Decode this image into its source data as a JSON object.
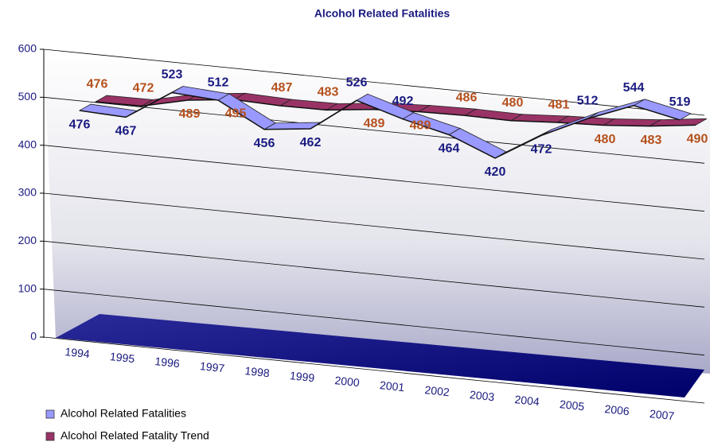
{
  "chart_data": {
    "type": "line3d",
    "title": "Alcohol Related Fatalities",
    "categories": [
      "1994",
      "1995",
      "1996",
      "1997",
      "1998",
      "1999",
      "2000",
      "2001",
      "2002",
      "2003",
      "2004",
      "2005",
      "2006",
      "2007"
    ],
    "series": [
      {
        "name": "Alcohol Related Fatalities",
        "color": "#9999ff",
        "label_color": "#1a1a80",
        "values": [
          476,
          467,
          523,
          512,
          456,
          462,
          526,
          492,
          464,
          420,
          472,
          512,
          544,
          519
        ]
      },
      {
        "name": "Alcohol Related Fatality Trend",
        "color": "#993366",
        "label_color": "#b5501c",
        "values": [
          476,
          472,
          489,
          495,
          487,
          483,
          489,
          489,
          486,
          480,
          481,
          480,
          483,
          490
        ]
      }
    ],
    "ylim": [
      0,
      600
    ],
    "yticks": [
      0,
      100,
      200,
      300,
      400,
      500,
      600
    ],
    "grid": true
  }
}
